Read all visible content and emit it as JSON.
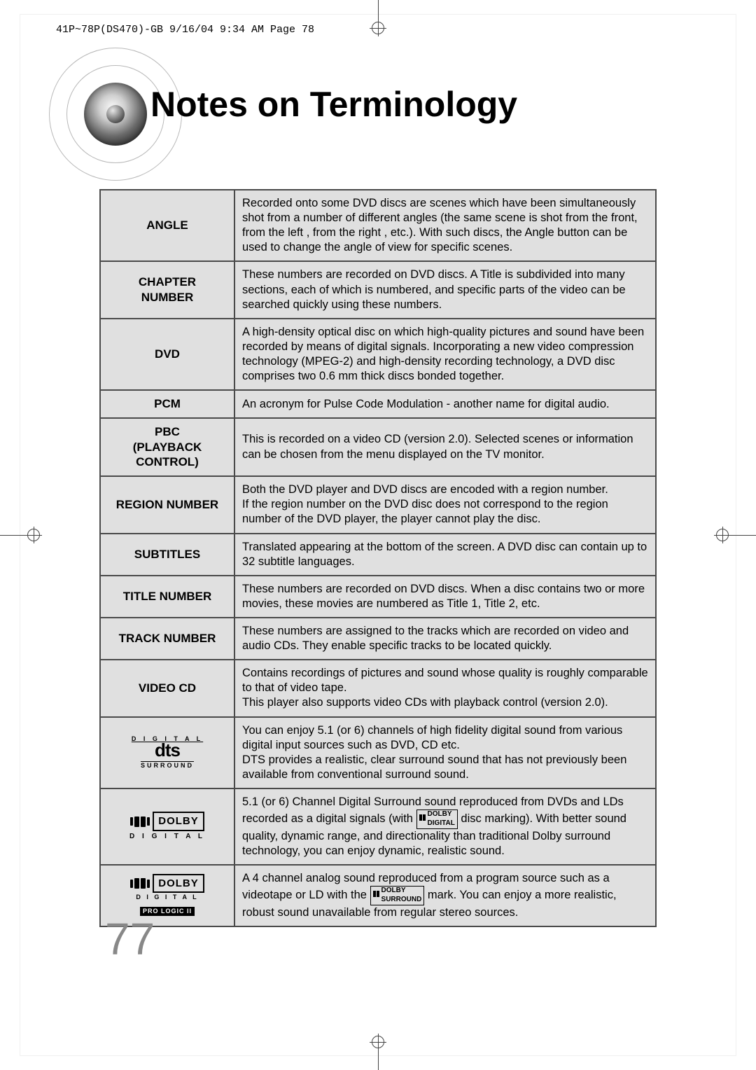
{
  "header_line": "41P~78P(DS470)-GB  9/16/04 9:34 AM  Page 78",
  "title": "Notes on Terminology",
  "page_number": "77",
  "rows": [
    {
      "term_html": "ANGLE",
      "def": "Recorded onto some DVD discs are scenes which have been simultaneously shot from a number of different angles (the same scene is shot from the front, from the left , from the right , etc.). With such discs, the Angle button can be used to change the angle of view for specific scenes."
    },
    {
      "term_html": "CHAPTER<br>NUMBER",
      "def": "These numbers are recorded on DVD discs. A Title is subdivided into many sections, each of which is numbered, and specific parts of the video can be searched quickly using these numbers."
    },
    {
      "term_html": "DVD",
      "def": "A high-density optical disc on which high-quality pictures and sound have been recorded by means of digital signals. Incorporating a new video compression technology (MPEG-2) and high-density recording technology, a DVD disc comprises  two 0.6 mm thick discs bonded together."
    },
    {
      "term_html": "PCM",
      "def": "An acronym for Pulse Code Modulation - another name for digital audio."
    },
    {
      "term_html": "PBC<br>(PLAYBACK<br>CONTROL)",
      "def": "This is recorded on a video CD (version 2.0). Selected scenes or information can be chosen from the menu displayed on the TV monitor."
    },
    {
      "term_html": "REGION NUMBER",
      "def": "Both the DVD player and DVD discs are encoded with a region number.<br>If the region number on the DVD disc does not correspond to the region number of the DVD player, the player cannot play the disc."
    },
    {
      "term_html": "SUBTITLES",
      "def": "Translated appearing at the bottom of the screen. A DVD disc can contain up to 32 subtitle languages."
    },
    {
      "term_html": "TITLE NUMBER",
      "def": "These numbers are recorded on DVD discs.  When a disc contains two or more movies, these movies are numbered as Title 1, Title 2, etc."
    },
    {
      "term_html": "TRACK NUMBER",
      "def": "These numbers are assigned to the tracks which are recorded on video and audio CDs. They enable specific tracks to be located quickly."
    },
    {
      "term_html": "VIDEO CD",
      "def": "Contains recordings of pictures and sound whose quality is roughly comparable to that of video tape. <br>This player also supports video CDs with playback control (version 2.0)."
    },
    {
      "term_logo": "dts",
      "def": "You can enjoy 5.1 (or 6) channels of high fidelity digital sound from various digital input sources such as DVD, CD etc.<br>DTS provides a realistic, clear surround sound that has not  previously been available from  conventional surround sound."
    },
    {
      "term_logo": "dolby_digital",
      "def_html": "5.1 (or 6) Channel Digital Surround sound reproduced from DVDs and LDs recorded as a digital signals (with <span class='inline-mark'><span class='dd-mini'><span></span><span></span></span> DOLBY<br>DIGITAL</span>  disc marking). With better sound quality, dynamic range, and directionality than traditional Dolby surround technology, you can enjoy dynamic, realistic sound."
    },
    {
      "term_logo": "prologic",
      "def_html": "A 4 channel analog sound reproduced from a program source such as a videotape or LD with the <span class='inline-mark'><span class='dd-mini'><span></span><span></span></span> DOLBY<br>SURROUND</span> mark. You can enjoy a more realistic, robust sound unavailable from regular stereo sources."
    }
  ],
  "colors": {
    "cell_bg": "#e0e0e0",
    "border": "#4a4a4a",
    "page_num": "#888888"
  }
}
